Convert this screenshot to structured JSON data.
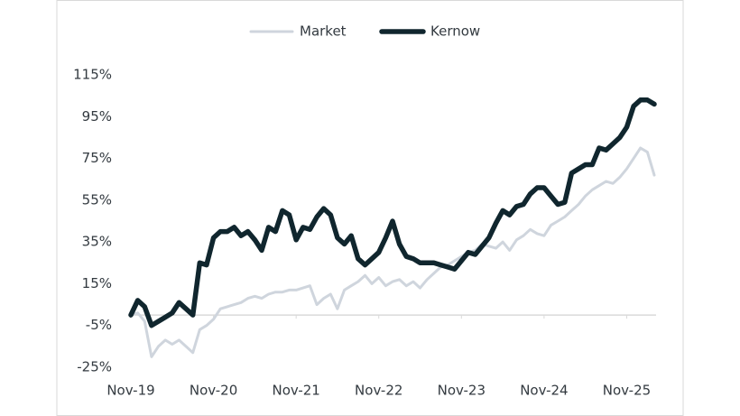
{
  "chart_data": {
    "type": "line",
    "categories": [
      "Nov-19",
      null,
      null,
      null,
      null,
      null,
      null,
      null,
      null,
      null,
      null,
      null,
      "Nov-20",
      null,
      null,
      null,
      null,
      null,
      null,
      null,
      null,
      null,
      null,
      null,
      "Nov-21",
      null,
      null,
      null,
      null,
      null,
      null,
      null,
      null,
      null,
      null,
      null,
      "Nov-22",
      null,
      null,
      null,
      null,
      null,
      null,
      null,
      null,
      null,
      null,
      null,
      "Nov-23",
      null,
      null,
      null,
      null,
      null,
      null,
      null,
      null,
      null,
      null,
      null,
      "Nov-24",
      null,
      null,
      null,
      null,
      null,
      null,
      null,
      null,
      null,
      null,
      null,
      "Nov-25",
      null,
      null,
      null,
      null
    ],
    "series": [
      {
        "name": "Market",
        "color": "#cfd5dd",
        "values": [
          0,
          1,
          -3,
          -20,
          -15,
          -12,
          -14,
          -12,
          -15,
          -18,
          -7,
          -5,
          -2,
          3,
          4,
          5,
          6,
          8,
          9,
          8,
          10,
          11,
          11,
          12,
          12,
          13,
          14,
          5,
          8,
          10,
          3,
          12,
          14,
          16,
          19,
          15,
          18,
          14,
          16,
          17,
          14,
          16,
          13,
          17,
          20,
          23,
          24,
          26,
          28,
          30,
          31,
          34,
          33,
          32,
          35,
          31,
          36,
          38,
          41,
          39,
          38,
          43,
          45,
          47,
          50,
          53,
          57,
          60,
          62,
          64,
          63,
          66,
          70,
          75,
          80,
          78,
          67
        ]
      },
      {
        "name": "Kernow",
        "color": "#10262e",
        "values": [
          0,
          7,
          4,
          -5,
          -3,
          -1,
          1,
          6,
          3,
          0,
          25,
          24,
          37,
          40,
          40,
          42,
          38,
          40,
          36,
          31,
          42,
          40,
          50,
          48,
          36,
          42,
          41,
          47,
          51,
          48,
          37,
          34,
          38,
          27,
          24,
          27,
          30,
          37,
          45,
          34,
          28,
          27,
          25,
          25,
          25,
          24,
          23,
          22,
          26,
          30,
          29,
          33,
          37,
          44,
          50,
          48,
          52,
          53,
          58,
          61,
          61,
          57,
          53,
          54,
          68,
          70,
          72,
          72,
          80,
          79,
          82,
          85,
          90,
          100,
          103,
          103,
          101
        ]
      }
    ],
    "ylim": [
      -25,
      115
    ],
    "yticks": [
      {
        "value": -25,
        "label": "-25%"
      },
      {
        "value": -5,
        "label": "-5%"
      },
      {
        "value": 15,
        "label": "15%"
      },
      {
        "value": 35,
        "label": "35%"
      },
      {
        "value": 55,
        "label": "55%"
      },
      {
        "value": 75,
        "label": "75%"
      },
      {
        "value": 95,
        "label": "95%"
      },
      {
        "value": 115,
        "label": "115%"
      }
    ],
    "legend": "top"
  }
}
